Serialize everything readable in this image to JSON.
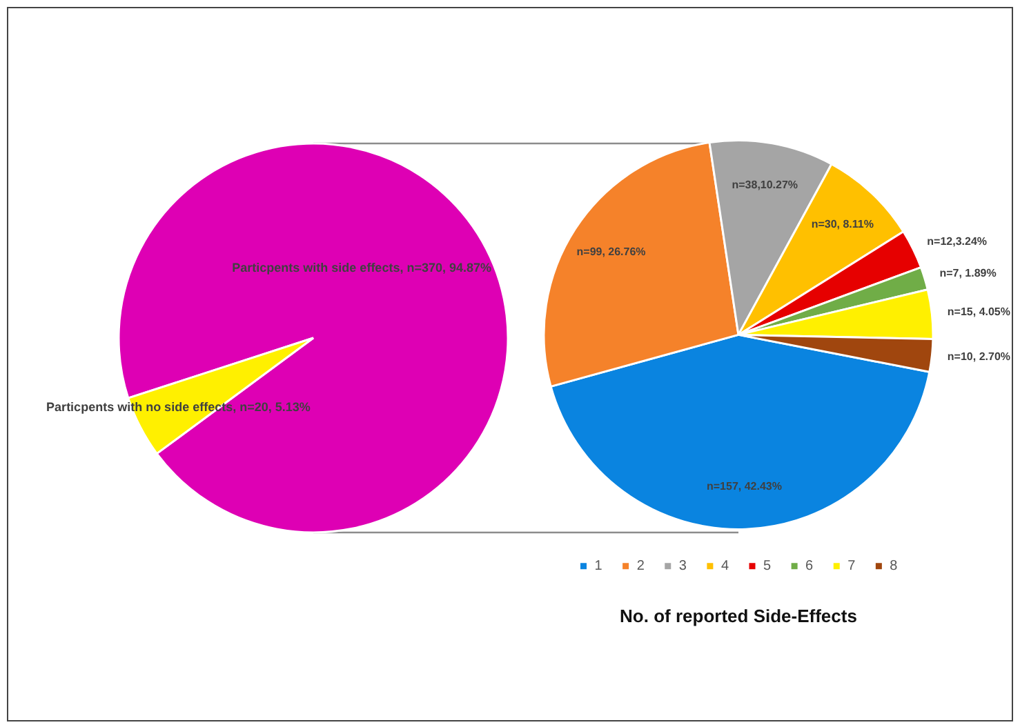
{
  "chart_data": [
    {
      "type": "pie",
      "categories": [
        "Particpents with side effects",
        "Particpents with no side effects"
      ],
      "values": [
        370,
        20
      ],
      "colors": [
        "#de00b4",
        "#fff000"
      ],
      "value_labels": [
        "n=370, 94.87%",
        "n=20, 5.13%"
      ]
    },
    {
      "type": "pie",
      "title": "No. of reported Side-Effects",
      "categories": [
        "1",
        "2",
        "3",
        "4",
        "5",
        "6",
        "7",
        "8"
      ],
      "values": [
        157,
        99,
        38,
        30,
        12,
        7,
        15,
        10
      ],
      "colors": [
        "#0a84e0",
        "#f5822a",
        "#a5a5a5",
        "#ffc000",
        "#e60000",
        "#70ad47",
        "#fff000",
        "#a0460e"
      ],
      "value_labels": [
        "n=157, 42.43%",
        "n=99, 26.76%",
        "n=38,10.27%",
        "n=30, 8.11%",
        "n=12,3.24%",
        "n=7, 1.89%",
        "n=15, 4.05%",
        "n=10, 2.70%"
      ],
      "legend": "bottom"
    }
  ]
}
